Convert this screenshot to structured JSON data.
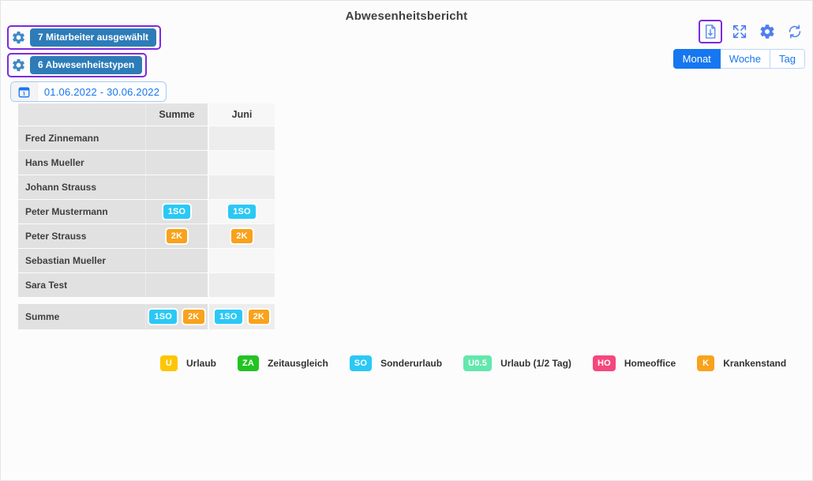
{
  "title": "Abwesenheitsbericht",
  "filters": {
    "employees_label": "7 Mitarbeiter ausgewählt",
    "types_label": "6 Abwesenheitstypen",
    "date_range": "01.06.2022 - 30.06.2022",
    "calendar_icon_day": "1"
  },
  "toolbar": {
    "icons": [
      "export-icon",
      "fullscreen-icon",
      "settings-icon",
      "refresh-icon"
    ],
    "view_tabs": [
      {
        "label": "Monat",
        "active": true
      },
      {
        "label": "Woche",
        "active": false
      },
      {
        "label": "Tag",
        "active": false
      }
    ]
  },
  "table": {
    "columns": {
      "name": "",
      "sum": "Summe",
      "month": "Juni"
    },
    "rows": [
      {
        "name": "Fred Zinnemann",
        "sum_badges": [],
        "month_badges": []
      },
      {
        "name": "Hans Mueller",
        "sum_badges": [],
        "month_badges": []
      },
      {
        "name": "Johann Strauss",
        "sum_badges": [],
        "month_badges": []
      },
      {
        "name": "Peter Mustermann",
        "sum_badges": [
          {
            "label": "1SO",
            "type": "SO"
          }
        ],
        "month_badges": [
          {
            "label": "1SO",
            "type": "SO"
          }
        ]
      },
      {
        "name": "Peter Strauss",
        "sum_badges": [
          {
            "label": "2K",
            "type": "K"
          }
        ],
        "month_badges": [
          {
            "label": "2K",
            "type": "K"
          }
        ]
      },
      {
        "name": "Sebastian Mueller",
        "sum_badges": [],
        "month_badges": []
      },
      {
        "name": "Sara Test",
        "sum_badges": [],
        "month_badges": []
      }
    ],
    "total_row": {
      "name": "Summe",
      "sum_badges": [
        {
          "label": "1SO",
          "type": "SO"
        },
        {
          "label": "2K",
          "type": "K"
        }
      ],
      "month_badges": [
        {
          "label": "1SO",
          "type": "SO"
        },
        {
          "label": "2K",
          "type": "K"
        }
      ]
    }
  },
  "legend": [
    {
      "code": "U",
      "label": "Urlaub",
      "type": "U"
    },
    {
      "code": "ZA",
      "label": "Zeitausgleich",
      "type": "ZA"
    },
    {
      "code": "SO",
      "label": "Sonderurlaub",
      "type": "SO"
    },
    {
      "code": "U0.5",
      "label": "Urlaub (1/2 Tag)",
      "type": "U05"
    },
    {
      "code": "HO",
      "label": "Homeoffice",
      "type": "HO"
    },
    {
      "code": "K",
      "label": "Krankenstand",
      "type": "K"
    }
  ],
  "badge_colors": {
    "U": "#fdc504",
    "ZA": "#22c322",
    "SO": "#2bc8f5",
    "U05": "#63e7ad",
    "HO": "#f5477d",
    "K": "#f9a21b"
  },
  "colors": {
    "accent": "#1677f0",
    "steel": "#2d7cb8",
    "purple": "#7b2be0",
    "iconblue": "#4d7ef0",
    "gearblue": "#3e88c4"
  }
}
